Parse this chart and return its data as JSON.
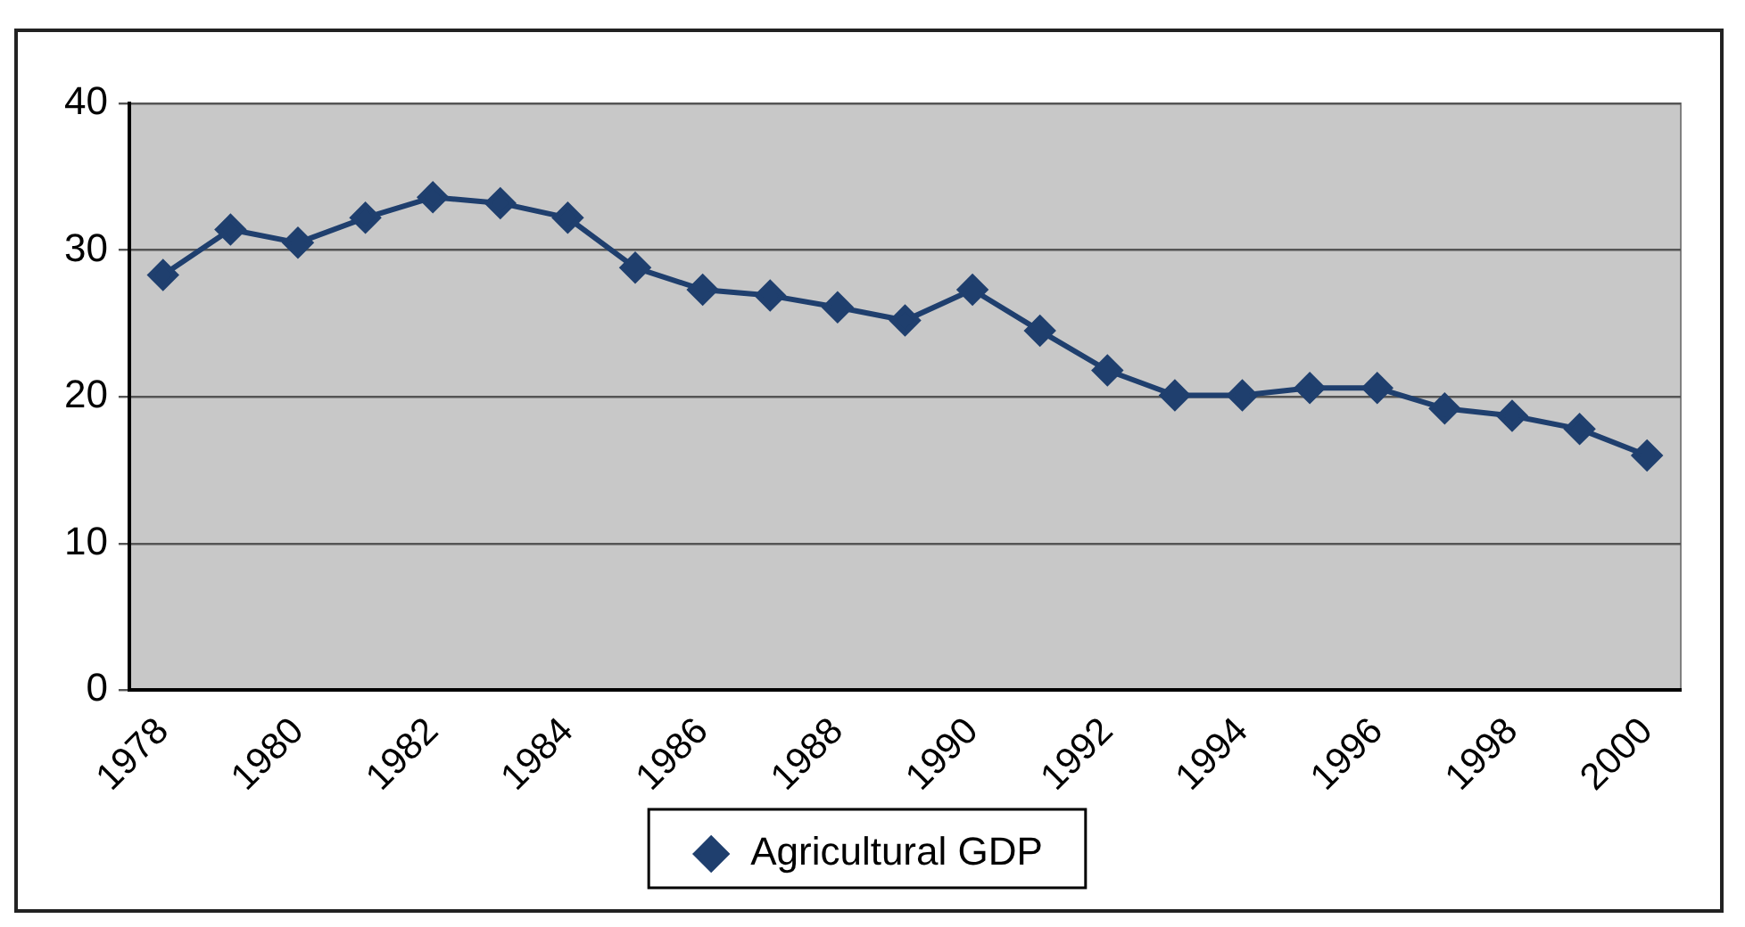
{
  "chart_data": {
    "type": "line",
    "categories": [
      "1978",
      null,
      "1980",
      null,
      "1982",
      null,
      "1984",
      null,
      "1986",
      null,
      "1988",
      null,
      "1990",
      null,
      "1992",
      null,
      "1994",
      null,
      "1996",
      null,
      "1998",
      null,
      "2000"
    ],
    "series": [
      {
        "name": "Agricultural GDP",
        "color": "#1f3f6e",
        "values": [
          28.3,
          31.4,
          30.5,
          32.2,
          33.6,
          33.2,
          32.2,
          28.8,
          27.3,
          26.9,
          26.1,
          25.2,
          27.3,
          24.5,
          21.8,
          20.1,
          20.1,
          20.6,
          20.6,
          19.2,
          18.7,
          17.8,
          16
        ]
      }
    ],
    "ylim": [
      0,
      40
    ],
    "yticks": [
      0,
      10,
      20,
      30,
      40
    ],
    "grid": "y",
    "legend": "bottom",
    "marker": "diamond",
    "line_style": "solid"
  }
}
